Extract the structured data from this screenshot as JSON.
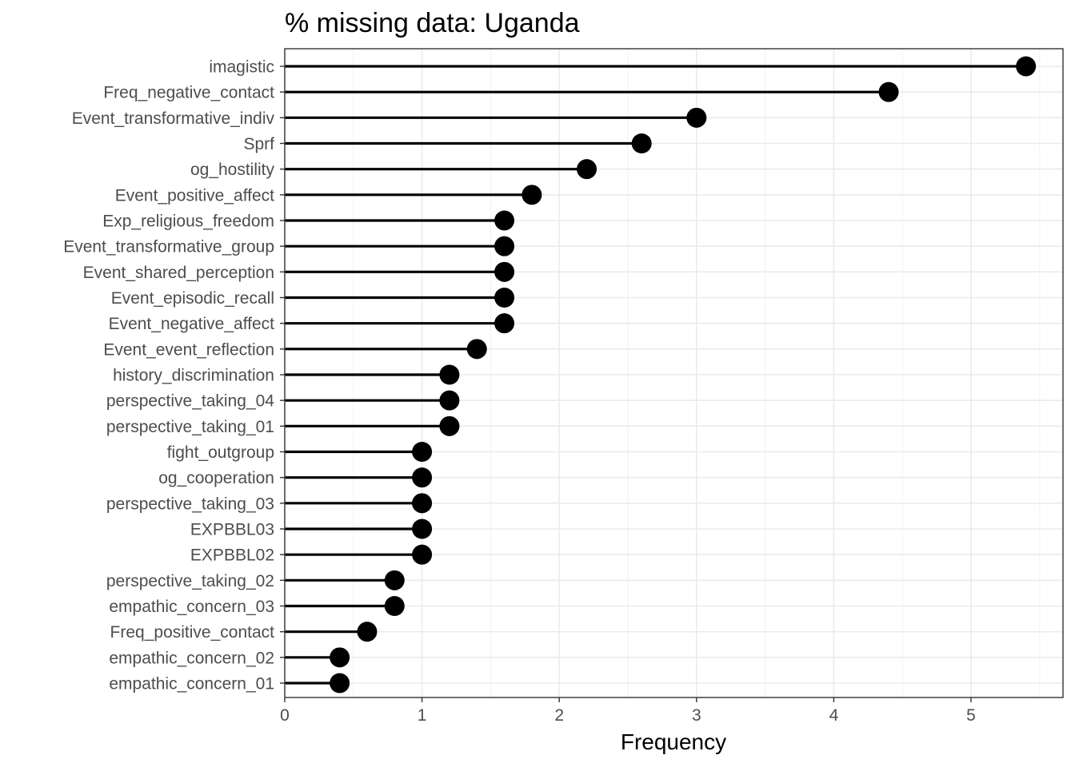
{
  "chart_data": {
    "type": "lollipop",
    "title": "% missing data: Uganda",
    "xlabel": "Frequency",
    "ylabel": "",
    "xlim": [
      0,
      5.67
    ],
    "x_ticks": [
      "0",
      "1",
      "2",
      "3",
      "4",
      "5"
    ],
    "grid": true,
    "legend": "none",
    "colors": {
      "mark": "#000000",
      "panel_border": "#333333",
      "grid_major": "#ebebeb",
      "grid_minor": "#f2f2f2"
    },
    "categories": [
      "imagistic",
      "Freq_negative_contact",
      "Event_transformative_indiv",
      "Sprf",
      "og_hostility",
      "Event_positive_affect",
      "Exp_religious_freedom",
      "Event_transformative_group",
      "Event_shared_perception",
      "Event_episodic_recall",
      "Event_negative_affect",
      "Event_event_reflection",
      "history_discrimination",
      "perspective_taking_04",
      "perspective_taking_01",
      "fight_outgroup",
      "og_cooperation",
      "perspective_taking_03",
      "EXPBBL03",
      "EXPBBL02",
      "perspective_taking_02",
      "empathic_concern_03",
      "Freq_positive_contact",
      "empathic_concern_02",
      "empathic_concern_01"
    ],
    "values": [
      5.4,
      4.4,
      3.0,
      2.6,
      2.2,
      1.8,
      1.6,
      1.6,
      1.6,
      1.6,
      1.6,
      1.4,
      1.2,
      1.2,
      1.2,
      1.0,
      1.0,
      1.0,
      1.0,
      1.0,
      0.8,
      0.8,
      0.6,
      0.4,
      0.4
    ]
  }
}
